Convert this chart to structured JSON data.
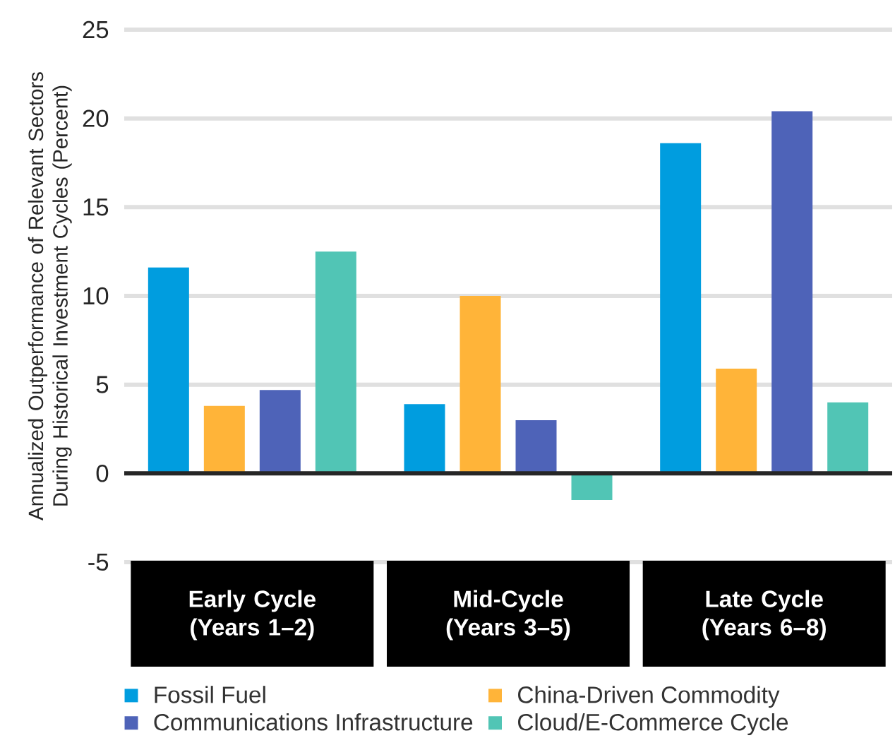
{
  "chart_data": {
    "type": "bar",
    "ylabel": "Annualized Outperformance of Relevant Sectors During Historical Investment Cycles (Percent)",
    "categories": [
      "Early Cycle (Years 1–2)",
      "Mid-Cycle (Years 3–5)",
      "Late Cycle (Years 6–8)"
    ],
    "series": [
      {
        "name": "Fossil Fuel",
        "color": "#009ddf",
        "values": [
          11.6,
          3.9,
          18.6
        ]
      },
      {
        "name": "China-Driven Commodity",
        "color": "#ffb439",
        "values": [
          3.8,
          10,
          5.9
        ]
      },
      {
        "name": "Communications Infrastructure",
        "color": "#4e63b8",
        "values": [
          4.7,
          3,
          20.4
        ]
      },
      {
        "name": "Cloud/E-Commerce Cycle",
        "color": "#51c5b5",
        "values": [
          12.5,
          -1.5,
          4
        ]
      }
    ],
    "ylim": [
      -5,
      25
    ],
    "yticks": [
      -5,
      0,
      5,
      10,
      15,
      20,
      25
    ],
    "grid": "y",
    "legend": "bottom"
  }
}
